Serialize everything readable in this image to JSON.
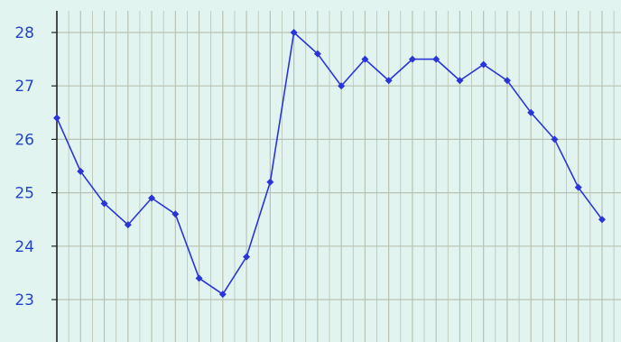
{
  "chart_data": {
    "type": "line",
    "title": "",
    "xlabel": "",
    "ylabel": "",
    "grid": true,
    "legend": "none",
    "ylim": [
      22.3,
      28.6
    ],
    "yticks": [
      28,
      27,
      26,
      25,
      24,
      23
    ],
    "ytick_labels": [
      "28",
      "27",
      "26",
      "25",
      "24",
      "23"
    ],
    "x": [
      0,
      1,
      2,
      3,
      4,
      5,
      6,
      7,
      8,
      9,
      10,
      11,
      12,
      13,
      14,
      15,
      16,
      17,
      18,
      19,
      20,
      21,
      22,
      23
    ],
    "series": [
      {
        "values": [
          26.4,
          25.4,
          24.8,
          24.4,
          24.9,
          24.6,
          23.4,
          23.1,
          23.8,
          25.2,
          28.0,
          27.6,
          27.0,
          27.5,
          27.1,
          27.5,
          27.5,
          27.1,
          27.4,
          27.1,
          26.5,
          26.0,
          25.1,
          24.5
        ],
        "color": "#2a35d8"
      }
    ],
    "colors": {
      "background": "#e2f4f0",
      "grid": "#b8c2b2",
      "axis": "#222222",
      "line": "#2a35d8",
      "tick_text": "#2244cc"
    }
  }
}
